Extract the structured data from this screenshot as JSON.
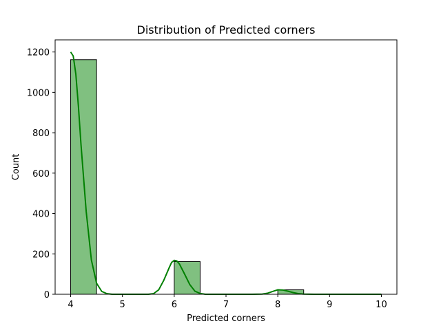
{
  "chart_data": {
    "type": "bar",
    "title": "Distribution of Predicted corners",
    "xlabel": "Predicted corners",
    "ylabel": "Count",
    "xlim": [
      3.7,
      10.3
    ],
    "ylim": [
      0,
      1260
    ],
    "x_ticks": [
      4,
      5,
      6,
      7,
      8,
      9,
      10
    ],
    "y_ticks": [
      0,
      200,
      400,
      600,
      800,
      1000,
      1200
    ],
    "bins": [
      {
        "start": 4.0,
        "end": 4.5,
        "count": 1162
      },
      {
        "start": 4.5,
        "end": 5.0,
        "count": 0
      },
      {
        "start": 5.0,
        "end": 5.5,
        "count": 0
      },
      {
        "start": 5.5,
        "end": 6.0,
        "count": 0
      },
      {
        "start": 6.0,
        "end": 6.5,
        "count": 162
      },
      {
        "start": 6.5,
        "end": 7.0,
        "count": 0
      },
      {
        "start": 7.0,
        "end": 7.5,
        "count": 0
      },
      {
        "start": 7.5,
        "end": 8.0,
        "count": 0
      },
      {
        "start": 8.0,
        "end": 8.5,
        "count": 22
      },
      {
        "start": 8.5,
        "end": 9.0,
        "count": 0
      },
      {
        "start": 9.0,
        "end": 9.5,
        "count": 0
      },
      {
        "start": 9.5,
        "end": 10.0,
        "count": 0
      }
    ],
    "kde_curve": {
      "x": [
        4.0,
        4.05,
        4.1,
        4.15,
        4.2,
        4.3,
        4.4,
        4.5,
        4.6,
        4.7,
        4.8,
        5.0,
        5.5,
        5.6,
        5.7,
        5.8,
        5.9,
        5.95,
        6.0,
        6.05,
        6.1,
        6.2,
        6.3,
        6.4,
        6.5,
        6.6,
        7.0,
        7.5,
        7.7,
        7.8,
        7.9,
        8.0,
        8.1,
        8.2,
        8.3,
        8.4,
        8.5,
        8.7,
        9.0,
        10.0
      ],
      "y": [
        1200,
        1180,
        1090,
        930,
        740,
        410,
        170,
        55,
        14,
        3,
        0,
        0,
        0,
        3,
        22,
        70,
        130,
        158,
        168,
        165,
        150,
        100,
        48,
        15,
        4,
        0,
        0,
        0,
        1,
        5,
        14,
        22,
        21,
        15,
        8,
        3,
        1,
        0,
        0,
        0
      ]
    },
    "bar_color": "#80c080",
    "line_color": "#008000",
    "edge_color": "#000000",
    "grid": false,
    "legend": "none"
  }
}
